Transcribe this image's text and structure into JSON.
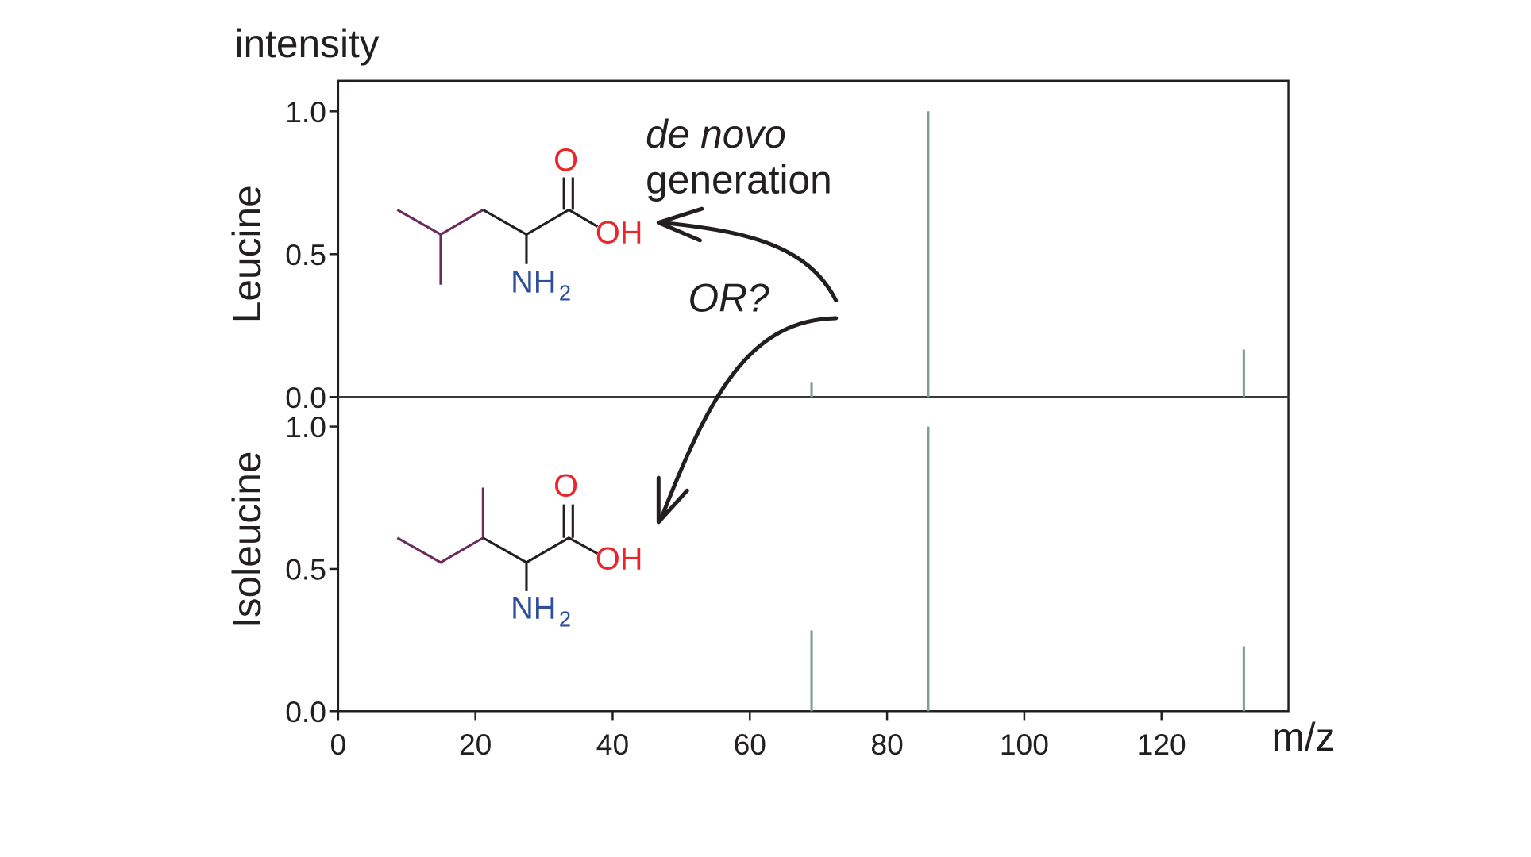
{
  "chart_data": [
    {
      "type": "stem",
      "y_label": "intensity",
      "panel_label": "Leucine",
      "x": [
        69,
        86,
        132
      ],
      "values": [
        0.05,
        1.0,
        0.166
      ],
      "color": "#7f9f96",
      "xlim": [
        0,
        138.5
      ],
      "ylim": [
        0,
        1.107
      ],
      "yticks": [
        {
          "value": 0,
          "label": "0.0"
        },
        {
          "value": 0.5,
          "label": "0.5"
        },
        {
          "value": 1,
          "label": "1.0"
        }
      ],
      "annotations": [
        "de novo",
        "generation",
        "OR?"
      ],
      "structure_labels": [
        "O",
        "OH",
        "NH",
        "2"
      ]
    },
    {
      "type": "stem",
      "panel_label": "Isoleucine",
      "x_label": "m/z",
      "x": [
        69,
        86,
        132
      ],
      "values": [
        0.284,
        1.0,
        0.228
      ],
      "color": "#7f9f96",
      "xlim": [
        0,
        138.5
      ],
      "ylim": [
        0,
        1.104
      ],
      "xticks": [
        0,
        20,
        40,
        60,
        80,
        100,
        120
      ],
      "yticks": [
        {
          "value": 0,
          "label": "0.0"
        },
        {
          "value": 0.5,
          "label": "0.5"
        },
        {
          "value": 1,
          "label": "1.0"
        }
      ],
      "structure_labels": [
        "O",
        "OH",
        "NH",
        "2"
      ]
    }
  ]
}
